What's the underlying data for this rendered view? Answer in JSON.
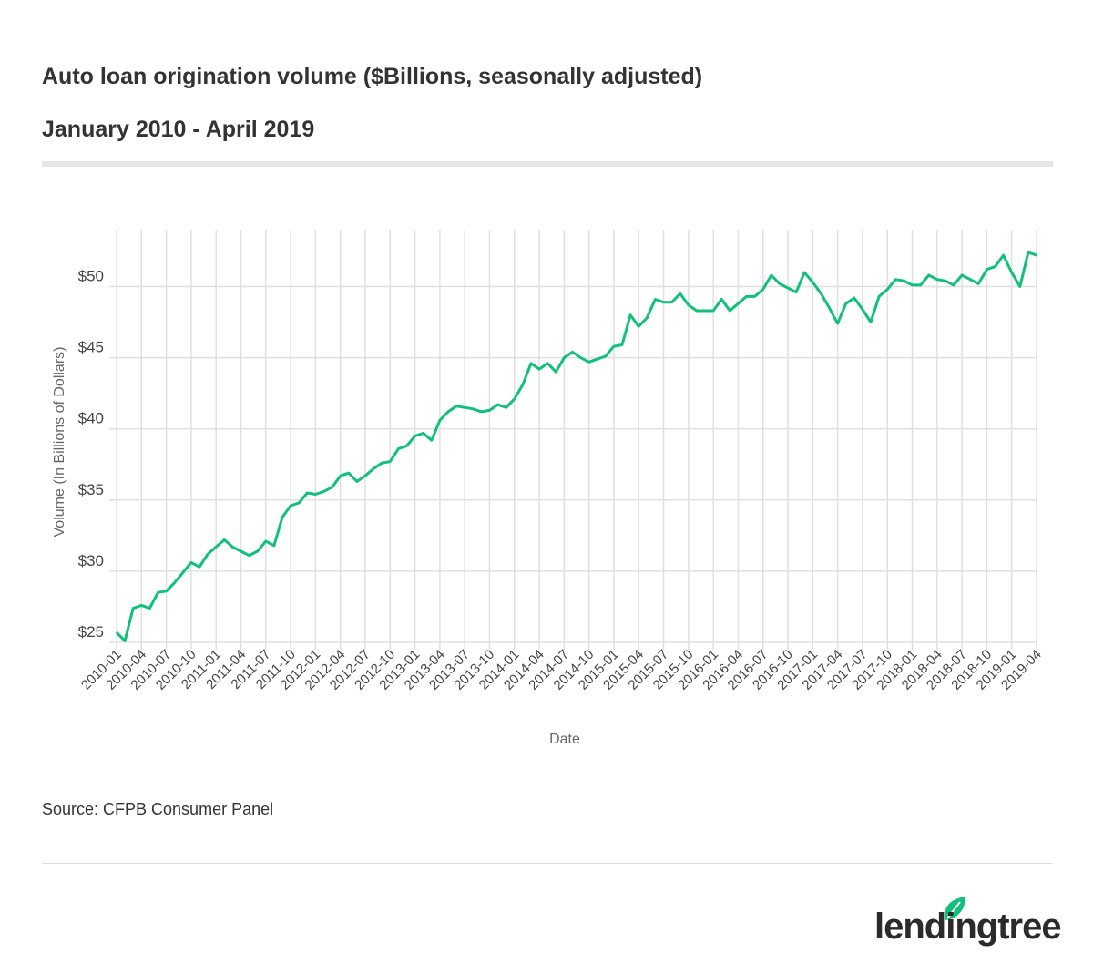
{
  "header": {
    "title": "Auto loan origination volume ($Billions, seasonally adjusted)",
    "subtitle": "January 2010 - April 2019"
  },
  "footer": {
    "source": "Source: CFPB Consumer Panel",
    "logo_text": "lendingtree"
  },
  "colors": {
    "line": "#13c07a",
    "grid": "#e0e0e0",
    "text": "#333333"
  },
  "chart_data": {
    "type": "line",
    "title": "Auto loan origination volume ($Billions, seasonally adjusted)",
    "xlabel": "Date",
    "ylabel": "Volume (In Billions of Dollars)",
    "ylim": [
      25,
      54
    ],
    "yticks": [
      25,
      30,
      35,
      40,
      45,
      50
    ],
    "ytick_labels": [
      "$25",
      "$30",
      "$35",
      "$40",
      "$45",
      "$50"
    ],
    "xtick_labels": [
      "2010-01",
      "2010-04",
      "2010-07",
      "2010-10",
      "2011-01",
      "2011-04",
      "2011-07",
      "2011-10",
      "2012-01",
      "2012-04",
      "2012-07",
      "2012-10",
      "2013-01",
      "2013-04",
      "2013-07",
      "2013-10",
      "2014-01",
      "2014-04",
      "2014-07",
      "2014-10",
      "2015-01",
      "2015-04",
      "2015-07",
      "2015-10",
      "2016-01",
      "2016-04",
      "2016-07",
      "2016-10",
      "2017-01",
      "2017-04",
      "2017-07",
      "2017-10",
      "2018-01",
      "2018-04",
      "2018-07",
      "2018-10",
      "2019-01",
      "2019-04"
    ],
    "x_start": "2010-01",
    "x_end": "2019-04",
    "grid": true,
    "legend": "none",
    "series": [
      {
        "name": "Volume",
        "values": [
          25.7,
          25.1,
          27.4,
          27.6,
          27.4,
          28.5,
          28.6,
          29.2,
          29.9,
          30.6,
          30.3,
          31.2,
          31.7,
          32.2,
          31.7,
          31.4,
          31.1,
          31.4,
          32.1,
          31.8,
          33.8,
          34.6,
          34.8,
          35.5,
          35.4,
          35.6,
          35.9,
          36.7,
          36.9,
          36.3,
          36.7,
          37.2,
          37.6,
          37.7,
          38.6,
          38.8,
          39.5,
          39.7,
          39.2,
          40.6,
          41.2,
          41.6,
          41.5,
          41.4,
          41.2,
          41.3,
          41.7,
          41.5,
          42.1,
          43.1,
          44.6,
          44.2,
          44.6,
          44.0,
          45.0,
          45.4,
          45.0,
          44.7,
          44.9,
          45.1,
          45.8,
          45.9,
          48.0,
          47.2,
          47.8,
          49.1,
          48.9,
          48.9,
          49.5,
          48.7,
          48.3,
          48.3,
          48.3,
          49.1,
          48.3,
          48.8,
          49.3,
          49.3,
          49.8,
          50.8,
          50.2,
          49.9,
          49.6,
          51.0,
          50.3,
          49.5,
          48.5,
          47.4,
          48.8,
          49.2,
          48.4,
          47.5,
          49.3,
          49.8,
          50.5,
          50.4,
          50.1,
          50.1,
          50.8,
          50.5,
          50.4,
          50.1,
          50.8,
          50.5,
          50.2,
          51.2,
          51.4,
          52.2,
          51.0,
          50.0,
          52.4,
          52.2
        ]
      }
    ]
  }
}
